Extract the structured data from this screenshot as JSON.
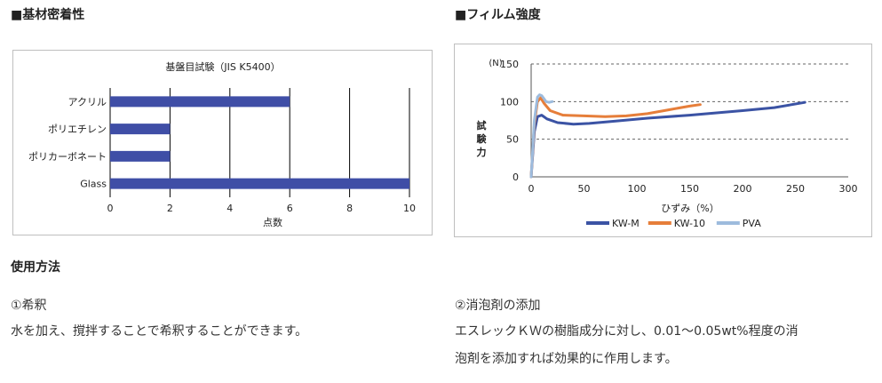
{
  "left_section": {
    "heading": "■基材密着性",
    "chart_data": {
      "type": "bar",
      "title": "基盤目試験（JIS K5400）",
      "categories": [
        "アクリル",
        "ポリエチレン",
        "ポリカーボネート",
        "Glass"
      ],
      "values": [
        6,
        2,
        2,
        10
      ],
      "xlabel": "点数",
      "xlim": [
        0,
        10
      ],
      "xticks": [
        0,
        2,
        4,
        6,
        8,
        10
      ],
      "grid": "vertical",
      "bar_color": "#3f4ea6"
    }
  },
  "right_section": {
    "heading": "■フィルム強度",
    "chart_data": {
      "type": "line",
      "unit_label": "(N)",
      "ylabel": "試験力",
      "xlabel": "ひずみ（%）",
      "xlim": [
        0,
        300
      ],
      "ylim": [
        0,
        150
      ],
      "xticks": [
        0,
        50,
        100,
        150,
        200,
        250,
        300
      ],
      "yticks": [
        0,
        50,
        100,
        150
      ],
      "grid": "horizontal-dashed",
      "legend": "bottom",
      "series": [
        {
          "name": "KW-M",
          "color": "#3b53a4",
          "x": [
            0,
            3,
            6,
            10,
            15,
            25,
            40,
            55,
            80,
            110,
            150,
            200,
            230,
            259
          ],
          "y": [
            0,
            60,
            80,
            82,
            77,
            72,
            70,
            71,
            74,
            78,
            82,
            88,
            92,
            99
          ]
        },
        {
          "name": "KW-10",
          "color": "#e67e3a",
          "x": [
            0,
            3,
            6,
            9,
            12,
            18,
            30,
            50,
            70,
            90,
            110,
            130,
            150,
            160
          ],
          "y": [
            0,
            70,
            100,
            105,
            98,
            88,
            82,
            81,
            80,
            81,
            84,
            89,
            94,
            96
          ]
        },
        {
          "name": "PVA",
          "color": "#9dbbdd",
          "x": [
            0,
            3,
            6,
            8,
            10,
            12,
            14,
            17,
            20
          ],
          "y": [
            0,
            75,
            106,
            109,
            108,
            104,
            100,
            99,
            100
          ]
        }
      ]
    }
  },
  "usage": {
    "heading": "使用方法",
    "item1": {
      "title": "①希釈",
      "text": "水を加え、撹拌することで希釈することができます。"
    },
    "item2": {
      "title": "②消泡剤の添加",
      "text_line1": "エスレックＫＷの樹脂成分に対し、0.01～0.05wt%程度の消",
      "text_line2": "泡剤を添加すれば効果的に作用します。"
    }
  }
}
